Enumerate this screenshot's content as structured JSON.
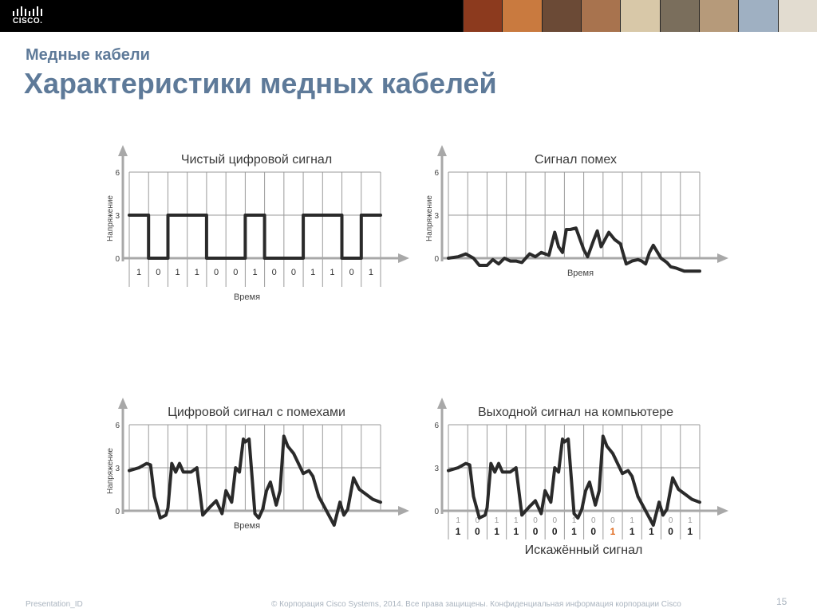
{
  "header": {
    "logo_text": "CISCO.",
    "photo_colors": [
      "#8c3a1e",
      "#c97a3f",
      "#6b4a36",
      "#a8734e",
      "#d8c8a8",
      "#7a6e5c",
      "#b69a7a",
      "#9fb0c2",
      "#e2dcd0"
    ]
  },
  "slide": {
    "subtitle": "Медные кабели",
    "title": "Характеристики медных кабелей"
  },
  "footer": {
    "left": "Presentation_ID",
    "center": "© Корпорация Cisco Systems, 2014. Все права защищены.    Конфиденциальная информация корпорации Cisco",
    "page": "15"
  },
  "chart_data": [
    {
      "type": "line",
      "title": "Чистый цифровой сигнал",
      "xlabel": "Время",
      "ylabel": "Напряжение",
      "yticks": [
        "0",
        "3",
        "6"
      ],
      "ylim": [
        0,
        6
      ],
      "xlim": [
        0,
        13
      ],
      "grid": true,
      "bits": [
        "1",
        "0",
        "1",
        "1",
        "0",
        "0",
        "1",
        "0",
        "0",
        "1",
        "1",
        "0",
        "1"
      ],
      "series": [
        {
          "x": [
            0,
            1,
            1,
            2,
            2,
            4,
            4,
            6,
            6,
            7,
            7,
            9,
            9,
            11,
            11,
            12,
            12,
            13
          ],
          "y": [
            3,
            3,
            0,
            0,
            3,
            3,
            0,
            0,
            3,
            3,
            0,
            0,
            3,
            3,
            0,
            0,
            3,
            3
          ]
        }
      ]
    },
    {
      "type": "line",
      "title": "Сигнал помех",
      "xlabel": "Время",
      "ylabel": "Напряжение",
      "yticks": [
        "0",
        "3",
        "6"
      ],
      "ylim": [
        0,
        6
      ],
      "xlim": [
        0,
        13
      ],
      "grid": true,
      "series": [
        {
          "x": [
            0,
            0.5,
            0.9,
            1.3,
            1.6,
            2.0,
            2.3,
            2.6,
            2.9,
            3.2,
            3.5,
            3.8,
            4.2,
            4.5,
            4.8,
            5.2,
            5.5,
            5.7,
            5.9,
            6.1,
            6.3,
            6.6,
            7.0,
            7.2,
            7.5,
            7.7,
            7.9,
            8.3,
            8.6,
            8.9,
            9.0,
            9.2,
            9.5,
            9.8,
            10.0,
            10.2,
            10.4,
            10.6,
            11.0,
            11.3,
            11.5,
            11.8,
            12.2,
            12.6,
            13.0
          ],
          "y": [
            0,
            0.1,
            0.3,
            0,
            -0.5,
            -0.5,
            -0.1,
            -0.4,
            0,
            -0.2,
            -0.2,
            -0.3,
            0.3,
            0.1,
            0.4,
            0.2,
            1.8,
            0.8,
            0.4,
            2.0,
            2.0,
            2.1,
            0.6,
            0.1,
            1.2,
            1.9,
            0.8,
            1.8,
            1.3,
            1.0,
            0.5,
            -0.4,
            -0.2,
            -0.1,
            -0.2,
            -0.4,
            0.4,
            0.9,
            0,
            -0.3,
            -0.6,
            -0.7,
            -0.9,
            -0.9,
            -0.9
          ]
        }
      ]
    },
    {
      "type": "line",
      "title": "Цифровой сигнал с помехами",
      "xlabel": "Время",
      "ylabel": "Напряжение",
      "yticks": [
        "0",
        "3",
        "6"
      ],
      "ylim": [
        0,
        6
      ],
      "xlim": [
        0,
        13
      ],
      "grid": true,
      "series": [
        {
          "x": [
            0,
            0.5,
            0.9,
            1.1,
            1.3,
            1.6,
            1.9,
            2.0,
            2.2,
            2.4,
            2.6,
            2.8,
            3.0,
            3.2,
            3.5,
            3.8,
            4.0,
            4.2,
            4.5,
            4.8,
            5.0,
            5.3,
            5.5,
            5.7,
            5.9,
            6.0,
            6.2,
            6.5,
            6.7,
            6.9,
            7.1,
            7.3,
            7.6,
            7.8,
            8.0,
            8.2,
            8.5,
            9.0,
            9.3,
            9.5,
            9.8,
            10.2,
            10.6,
            10.9,
            11.1,
            11.3,
            11.6,
            11.9,
            12.2,
            12.6,
            13.0
          ],
          "y": [
            2.8,
            3.0,
            3.3,
            3.2,
            1.0,
            -0.5,
            -0.3,
            0.2,
            3.3,
            2.7,
            3.3,
            2.7,
            2.7,
            2.7,
            3.0,
            -0.3,
            0.0,
            0.3,
            0.7,
            -0.2,
            1.4,
            0.6,
            3.0,
            2.7,
            5.0,
            4.8,
            5.0,
            -0.2,
            -0.5,
            0.1,
            1.4,
            2.0,
            0.4,
            1.4,
            5.2,
            4.5,
            4.0,
            2.6,
            2.8,
            2.4,
            1.0,
            0.0,
            -1.0,
            0.6,
            -0.3,
            0.1,
            2.3,
            1.5,
            1.2,
            0.8,
            0.6
          ]
        }
      ]
    },
    {
      "type": "line",
      "title": "Выходной сигнал на компьютере",
      "xlabel": "Искажённый сигнал",
      "ylabel": "",
      "yticks": [
        "0",
        "3",
        "6"
      ],
      "ylim": [
        0,
        6
      ],
      "xlim": [
        0,
        13
      ],
      "grid": true,
      "bits_expected": [
        "1",
        "0",
        "1",
        "1",
        "0",
        "0",
        "1",
        "0",
        "0",
        "1",
        "1",
        "0",
        "1"
      ],
      "bits_received": [
        "1",
        "0",
        "1",
        "1",
        "0",
        "0",
        "1",
        "0",
        "1",
        "1",
        "1",
        "0",
        "1"
      ],
      "error_bit_index": 8,
      "error_color": "#e06a1e",
      "series": [
        {
          "x": [
            0,
            0.5,
            0.9,
            1.1,
            1.3,
            1.6,
            1.9,
            2.0,
            2.2,
            2.4,
            2.6,
            2.8,
            3.0,
            3.2,
            3.5,
            3.8,
            4.0,
            4.2,
            4.5,
            4.8,
            5.0,
            5.3,
            5.5,
            5.7,
            5.9,
            6.0,
            6.2,
            6.5,
            6.7,
            6.9,
            7.1,
            7.3,
            7.6,
            7.8,
            8.0,
            8.2,
            8.5,
            9.0,
            9.3,
            9.5,
            9.8,
            10.2,
            10.6,
            10.9,
            11.1,
            11.3,
            11.6,
            11.9,
            12.2,
            12.6,
            13.0
          ],
          "y": [
            2.8,
            3.0,
            3.3,
            3.2,
            1.0,
            -0.5,
            -0.3,
            0.2,
            3.3,
            2.7,
            3.3,
            2.7,
            2.7,
            2.7,
            3.0,
            -0.3,
            0.0,
            0.3,
            0.7,
            -0.2,
            1.4,
            0.6,
            3.0,
            2.7,
            5.0,
            4.8,
            5.0,
            -0.2,
            -0.5,
            0.1,
            1.4,
            2.0,
            0.4,
            1.4,
            5.2,
            4.5,
            4.0,
            2.6,
            2.8,
            2.4,
            1.0,
            0.0,
            -1.0,
            0.6,
            -0.3,
            0.1,
            2.3,
            1.5,
            1.2,
            0.8,
            0.6
          ]
        }
      ]
    }
  ]
}
